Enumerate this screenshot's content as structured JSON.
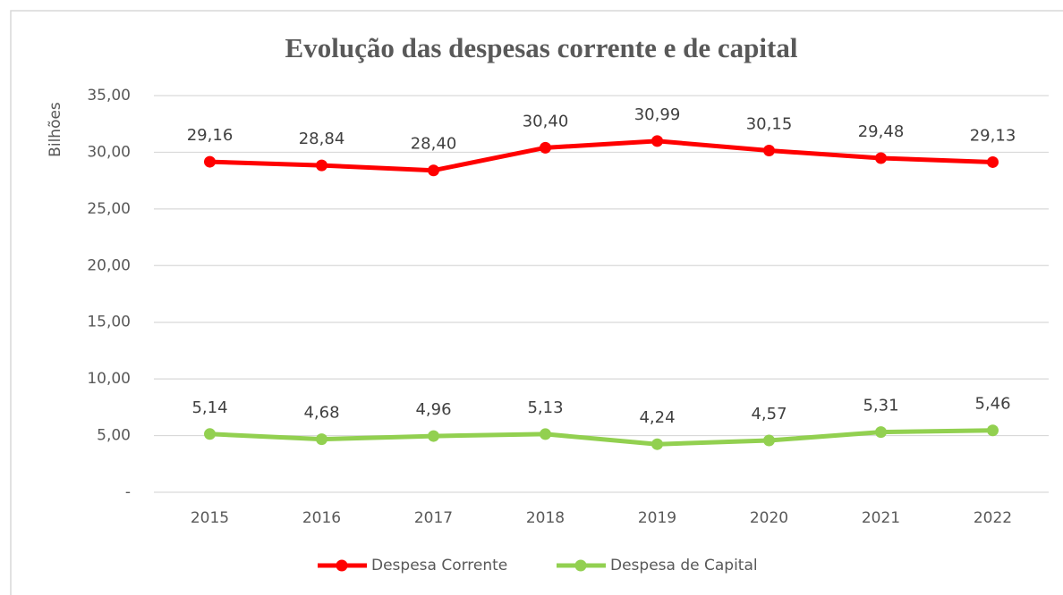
{
  "chart_data": {
    "type": "line",
    "title": "Evolução das despesas corrente e de capital",
    "y_label": "Bilhões",
    "categories": [
      "2015",
      "2016",
      "2017",
      "2018",
      "2019",
      "2020",
      "2021",
      "2022"
    ],
    "series": [
      {
        "name": "Despesa Corrente",
        "color": "#ff0000",
        "values": [
          29.16,
          28.84,
          28.4,
          30.4,
          30.99,
          30.15,
          29.48,
          29.13
        ],
        "value_labels": [
          "29,16",
          "28,84",
          "28,40",
          "30,40",
          "30,99",
          "30,15",
          "29,48",
          "29,13"
        ]
      },
      {
        "name": "Despesa de Capital",
        "color": "#92d050",
        "values": [
          5.14,
          4.68,
          4.96,
          5.13,
          4.24,
          4.57,
          5.31,
          5.46
        ],
        "value_labels": [
          "5,14",
          "4,68",
          "4,96",
          "5,13",
          "4,24",
          "4,57",
          "5,31",
          "5,46"
        ]
      }
    ],
    "ylim": [
      0,
      35
    ],
    "yticks": [
      {
        "value": 0,
        "label": "-"
      },
      {
        "value": 5,
        "label": "5,00"
      },
      {
        "value": 10,
        "label": "10,00"
      },
      {
        "value": 15,
        "label": "15,00"
      },
      {
        "value": 20,
        "label": "20,00"
      },
      {
        "value": 25,
        "label": "25,00"
      },
      {
        "value": 30,
        "label": "30,00"
      },
      {
        "value": 35,
        "label": "35,00"
      }
    ],
    "grid": true,
    "legend": "bottom"
  }
}
